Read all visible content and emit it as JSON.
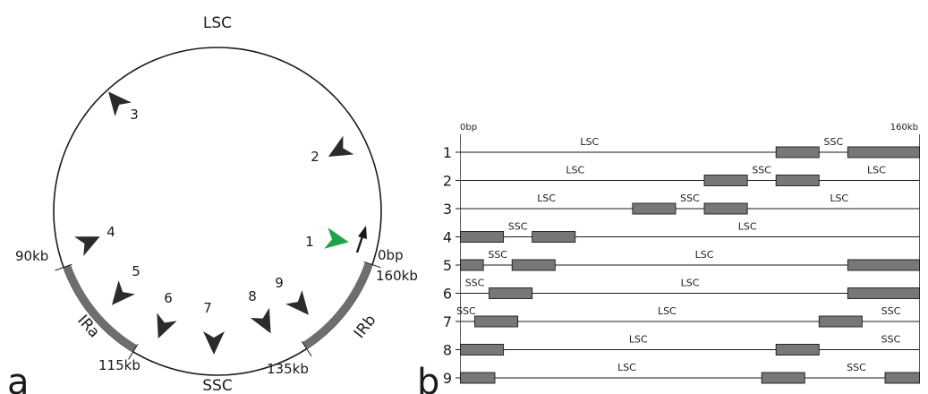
{
  "panel_a": {
    "panel_letter": "a",
    "region_labels": {
      "lsc": "LSC",
      "ssc": "SSC",
      "ira": "IRa",
      "irb": "IRb"
    },
    "position_labels": {
      "p0": "0bp",
      "p160": "160kb",
      "p90": "90kb",
      "p115": "115kb",
      "p135": "135kb"
    },
    "arrowheads": [
      {
        "label": "1",
        "color": "#1fa34a"
      },
      {
        "label": "2",
        "color": "#2b2b2b"
      },
      {
        "label": "3",
        "color": "#2b2b2b"
      },
      {
        "label": "4",
        "color": "#2b2b2b"
      },
      {
        "label": "5",
        "color": "#2b2b2b"
      },
      {
        "label": "6",
        "color": "#2b2b2b"
      },
      {
        "label": "7",
        "color": "#2b2b2b"
      },
      {
        "label": "8",
        "color": "#2b2b2b"
      },
      {
        "label": "9",
        "color": "#2b2b2b"
      }
    ],
    "ir_color": "#6e6e6e"
  },
  "panel_b": {
    "panel_letter": "b",
    "scale_start": "0bp",
    "scale_end": "160kb",
    "genome_length_kb": 160,
    "ir_color": "#777777",
    "rows": [
      {
        "label": "1",
        "irs": [
          [
            110,
            125
          ],
          [
            135,
            160
          ]
        ],
        "labels": [
          {
            "text": "LSC",
            "at": 45
          },
          {
            "text": "SSC",
            "at": 130
          }
        ]
      },
      {
        "label": "2",
        "irs": [
          [
            85,
            100
          ],
          [
            110,
            125
          ]
        ],
        "labels": [
          {
            "text": "LSC",
            "at": 40
          },
          {
            "text": "SSC",
            "at": 105
          },
          {
            "text": "LSC",
            "at": 145
          }
        ]
      },
      {
        "label": "3",
        "irs": [
          [
            60,
            75
          ],
          [
            85,
            100
          ]
        ],
        "labels": [
          {
            "text": "LSC",
            "at": 30
          },
          {
            "text": "SSC",
            "at": 80
          },
          {
            "text": "LSC",
            "at": 132
          }
        ]
      },
      {
        "label": "4",
        "irs": [
          [
            0,
            15
          ],
          [
            25,
            40
          ]
        ],
        "labels": [
          {
            "text": "SSC",
            "at": 20
          },
          {
            "text": "LSC",
            "at": 100
          }
        ]
      },
      {
        "label": "5",
        "irs": [
          [
            0,
            8
          ],
          [
            18,
            33
          ],
          [
            135,
            160
          ]
        ],
        "labels": [
          {
            "text": "SSC",
            "at": 13
          },
          {
            "text": "LSC",
            "at": 85
          }
        ]
      },
      {
        "label": "6",
        "irs": [
          [
            10,
            25
          ],
          [
            135,
            160
          ]
        ],
        "labels": [
          {
            "text": "SSC",
            "at": 5
          },
          {
            "text": "LSC",
            "at": 80
          }
        ]
      },
      {
        "label": "7",
        "irs": [
          [
            5,
            20
          ],
          [
            125,
            140
          ]
        ],
        "labels": [
          {
            "text": "SSC",
            "at": 2
          },
          {
            "text": "LSC",
            "at": 72
          },
          {
            "text": "SSC",
            "at": 150
          }
        ]
      },
      {
        "label": "8",
        "irs": [
          [
            0,
            15
          ],
          [
            110,
            125
          ]
        ],
        "labels": [
          {
            "text": "LSC",
            "at": 62
          },
          {
            "text": "SSC",
            "at": 150
          }
        ]
      },
      {
        "label": "9",
        "irs": [
          [
            0,
            12
          ],
          [
            105,
            120
          ],
          [
            148,
            160
          ]
        ],
        "labels": [
          {
            "text": "LSC",
            "at": 58
          },
          {
            "text": "SSC",
            "at": 138
          }
        ]
      }
    ]
  }
}
